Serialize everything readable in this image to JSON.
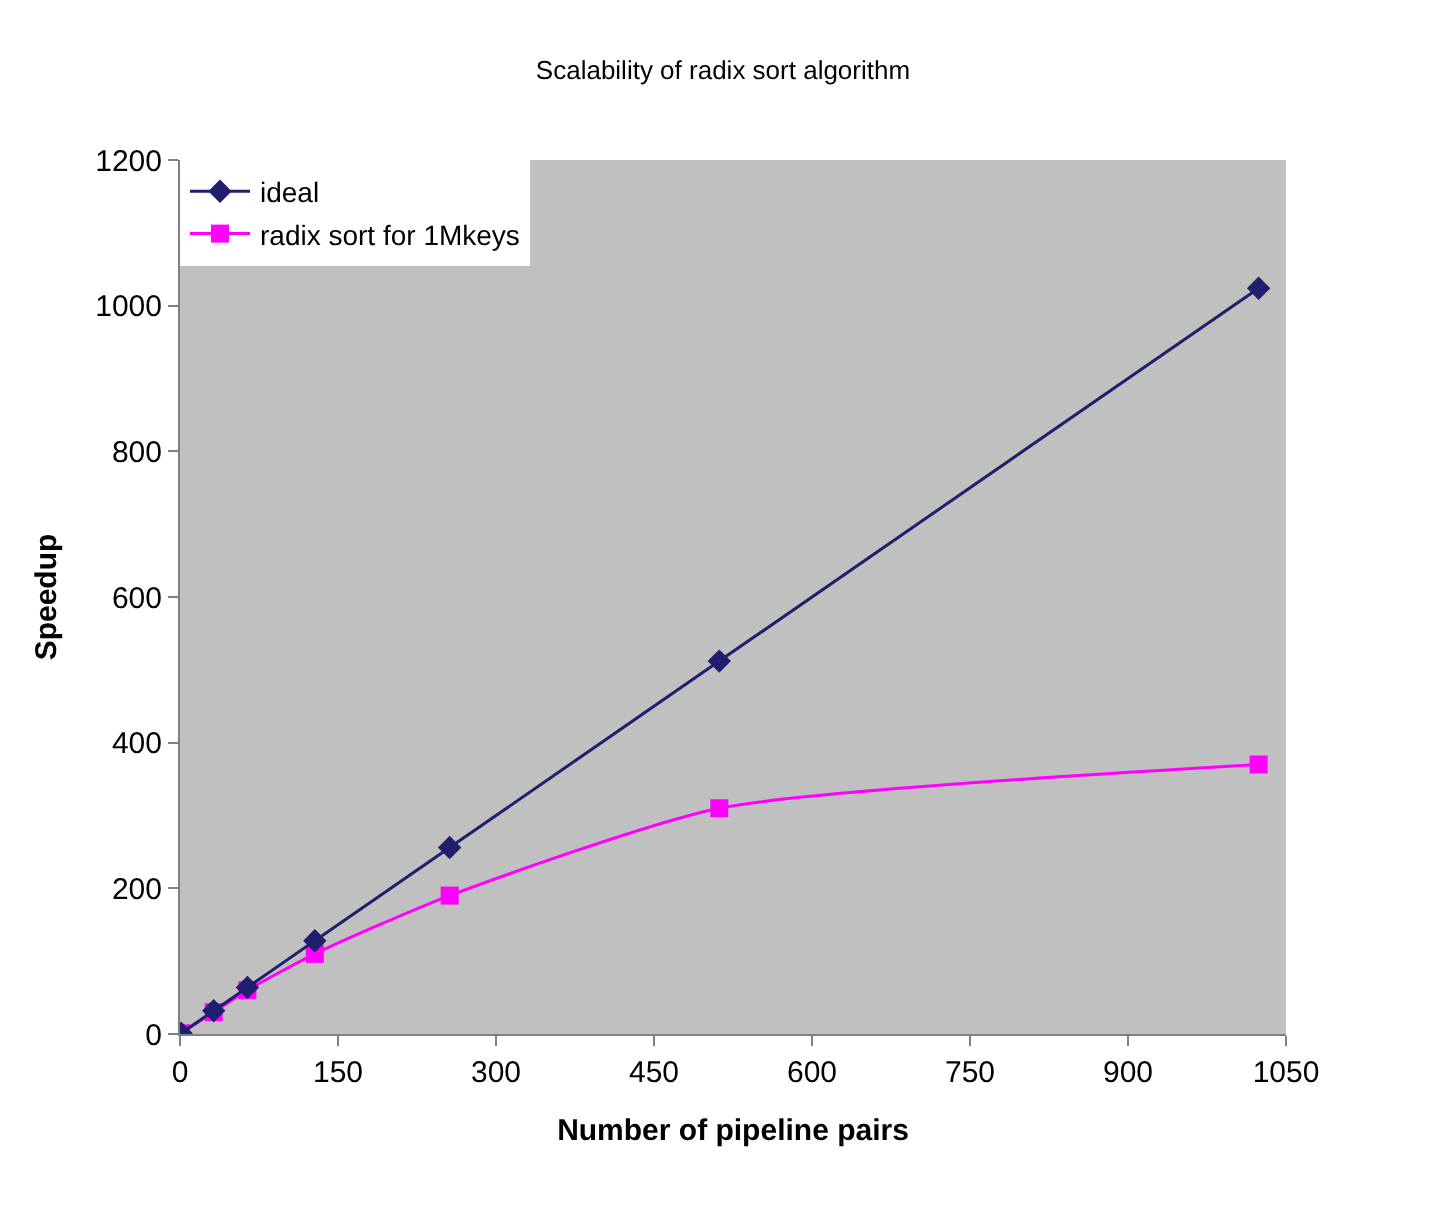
{
  "chart_data": {
    "type": "line",
    "title": "Scalability of radix sort algorithm",
    "xlabel": "Number of pipeline pairs",
    "ylabel": "Speedup",
    "x": [
      1,
      32,
      64,
      128,
      256,
      512,
      1024
    ],
    "series": [
      {
        "name": "ideal",
        "color": "#1f1f6e",
        "marker": "diamond",
        "values": [
          1,
          32,
          64,
          128,
          256,
          512,
          1024
        ]
      },
      {
        "name": "radix sort for 1Mkeys",
        "color": "#ff00ff",
        "marker": "square",
        "values": [
          1,
          30,
          60,
          110,
          190,
          310,
          370
        ]
      }
    ],
    "xlim": [
      0,
      1050
    ],
    "xticks": [
      0,
      150,
      300,
      450,
      600,
      750,
      900,
      1050
    ],
    "ylim": [
      0,
      1200
    ],
    "yticks": [
      0,
      200,
      400,
      600,
      800,
      1000,
      1200
    ],
    "grid": false,
    "legend": "top left",
    "line_style": "solid"
  }
}
